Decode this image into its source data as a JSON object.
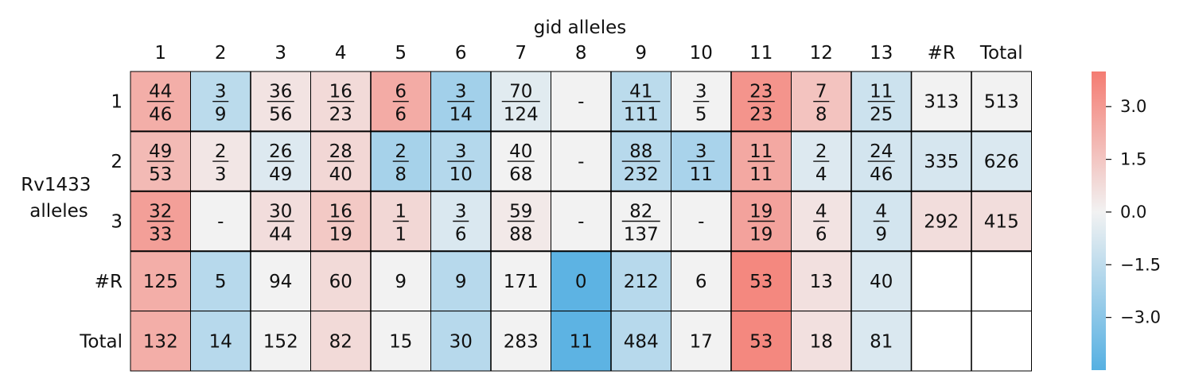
{
  "chart_data": {
    "type": "heatmap",
    "xlabel": "gid alleles",
    "ylabel": "Rv1433\nalleles",
    "x_ticks": [
      "1",
      "2",
      "3",
      "4",
      "5",
      "6",
      "7",
      "8",
      "9",
      "10",
      "11",
      "12",
      "13",
      "#R",
      "Total"
    ],
    "y_ticks": [
      "1",
      "2",
      "3",
      "#R",
      "Total"
    ],
    "rows": [
      {
        "cells": [
          {
            "num": "44",
            "den": "46",
            "v": 2.3
          },
          {
            "num": "3",
            "den": "9",
            "v": -1.6
          },
          {
            "num": "36",
            "den": "56",
            "v": 0.5
          },
          {
            "num": "16",
            "den": "23",
            "v": 0.8
          },
          {
            "num": "6",
            "den": "6",
            "v": 2.4
          },
          {
            "num": "3",
            "den": "14",
            "v": -2.3
          },
          {
            "num": "70",
            "den": "124",
            "v": -0.5
          },
          {
            "text": "-",
            "v": null
          },
          {
            "num": "41",
            "den": "111",
            "v": -1.6
          },
          {
            "num": "3",
            "den": "5",
            "v": 0.0
          },
          {
            "num": "23",
            "den": "23",
            "v": 3.2
          },
          {
            "num": "7",
            "den": "8",
            "v": 1.6
          },
          {
            "num": "11",
            "den": "25",
            "v": -1.1
          },
          {
            "text": "313",
            "v": 0.0
          },
          {
            "text": "513",
            "v": 0.0
          }
        ]
      },
      {
        "cells": [
          {
            "num": "49",
            "den": "53",
            "v": 1.9
          },
          {
            "num": "2",
            "den": "3",
            "v": 0.4
          },
          {
            "num": "26",
            "den": "49",
            "v": -0.6
          },
          {
            "num": "28",
            "den": "40",
            "v": 0.9
          },
          {
            "num": "2",
            "den": "8",
            "v": -2.2
          },
          {
            "num": "3",
            "den": "10",
            "v": -1.8
          },
          {
            "num": "40",
            "den": "68",
            "v": 0.0
          },
          {
            "text": "-",
            "v": null
          },
          {
            "num": "88",
            "den": "232",
            "v": -1.7
          },
          {
            "num": "3",
            "den": "11",
            "v": -2.1
          },
          {
            "num": "11",
            "den": "11",
            "v": 2.5
          },
          {
            "num": "2",
            "den": "4",
            "v": -0.6
          },
          {
            "num": "24",
            "den": "46",
            "v": -0.9
          },
          {
            "text": "335",
            "v": -0.8
          },
          {
            "text": "626",
            "v": -0.7
          }
        ]
      },
      {
        "cells": [
          {
            "num": "32",
            "den": "33",
            "v": 2.8
          },
          {
            "text": "-",
            "v": null
          },
          {
            "num": "30",
            "den": "44",
            "v": 0.7
          },
          {
            "num": "16",
            "den": "19",
            "v": 1.4
          },
          {
            "num": "1",
            "den": "1",
            "v": 0.9
          },
          {
            "num": "3",
            "den": "6",
            "v": -0.7
          },
          {
            "num": "59",
            "den": "88",
            "v": 0.3
          },
          {
            "text": "-",
            "v": null
          },
          {
            "num": "82",
            "den": "137",
            "v": 0.0
          },
          {
            "text": "-",
            "v": null
          },
          {
            "num": "19",
            "den": "19",
            "v": 2.7
          },
          {
            "num": "4",
            "den": "6",
            "v": 0.5
          },
          {
            "num": "4",
            "den": "9",
            "v": -0.9
          },
          {
            "text": "292",
            "v": 0.7
          },
          {
            "text": "415",
            "v": 0.7
          }
        ]
      },
      {
        "cells": [
          {
            "text": "125",
            "v": 2.3
          },
          {
            "text": "5",
            "v": -1.7
          },
          {
            "text": "94",
            "v": 0.0
          },
          {
            "text": "60",
            "v": 0.8
          },
          {
            "text": "9",
            "v": 0.0
          },
          {
            "text": "9",
            "v": -1.7
          },
          {
            "text": "171",
            "v": 0.0
          },
          {
            "text": "0",
            "v": -4.3
          },
          {
            "text": "212",
            "v": -1.7
          },
          {
            "text": "6",
            "v": 0.0
          },
          {
            "text": "53",
            "v": 3.6
          },
          {
            "text": "13",
            "v": 0.6
          },
          {
            "text": "40",
            "v": -0.7
          },
          {
            "text": "",
            "v": "white"
          },
          {
            "text": "",
            "v": "white"
          }
        ]
      },
      {
        "cells": [
          {
            "text": "132",
            "v": 2.3
          },
          {
            "text": "14",
            "v": -1.7
          },
          {
            "text": "152",
            "v": 0.0
          },
          {
            "text": "82",
            "v": 0.8
          },
          {
            "text": "15",
            "v": 0.0
          },
          {
            "text": "30",
            "v": -1.7
          },
          {
            "text": "283",
            "v": 0.0
          },
          {
            "text": "11",
            "v": -4.3
          },
          {
            "text": "484",
            "v": -1.7
          },
          {
            "text": "17",
            "v": 0.0
          },
          {
            "text": "53",
            "v": 3.6
          },
          {
            "text": "18",
            "v": 0.6
          },
          {
            "text": "81",
            "v": -0.7
          },
          {
            "text": "",
            "v": "white"
          },
          {
            "text": "",
            "v": "white"
          }
        ]
      }
    ],
    "null_color": "#f2f2f2",
    "colorscale": {
      "min": -4.5,
      "max": 4.0,
      "low_color": "#56b0e2",
      "mid_color": "#f2f2f2",
      "high_color": "#f47c72"
    },
    "colorbar_ticks": [
      "3.0",
      "1.5",
      "0.0",
      "−1.5",
      "−3.0"
    ],
    "colorbar_tick_values": [
      3.0,
      1.5,
      0.0,
      -1.5,
      -3.0
    ]
  }
}
